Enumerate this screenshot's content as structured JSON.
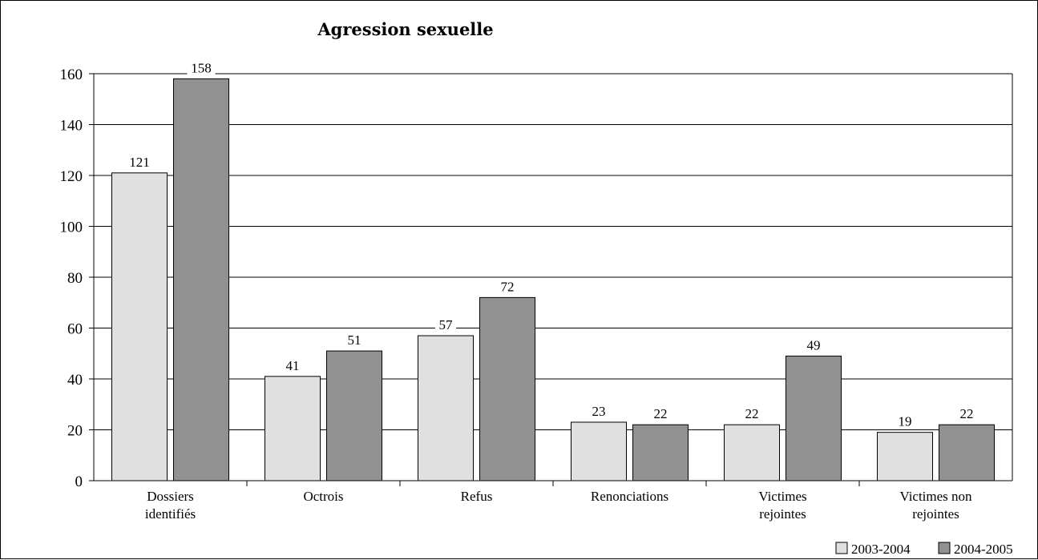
{
  "chart_data": {
    "type": "bar",
    "title": "Agression sexuelle",
    "categories": [
      [
        "Dossiers",
        "identifiés"
      ],
      [
        "Octrois"
      ],
      [
        "Refus"
      ],
      [
        "Renonciations"
      ],
      [
        "Victimes",
        "rejointes"
      ],
      [
        "Victimes non",
        "rejointes"
      ]
    ],
    "series": [
      {
        "name": "2003-2004",
        "color": "#e0e0e0",
        "values": [
          121,
          41,
          57,
          23,
          22,
          19
        ]
      },
      {
        "name": "2004-2005",
        "color": "#919191",
        "values": [
          158,
          51,
          72,
          22,
          49,
          22
        ]
      }
    ],
    "ylim": [
      0,
      160
    ],
    "yticks": [
      0,
      20,
      40,
      60,
      80,
      100,
      120,
      140,
      160
    ],
    "grid": true,
    "legend_position": "bottom-right"
  }
}
